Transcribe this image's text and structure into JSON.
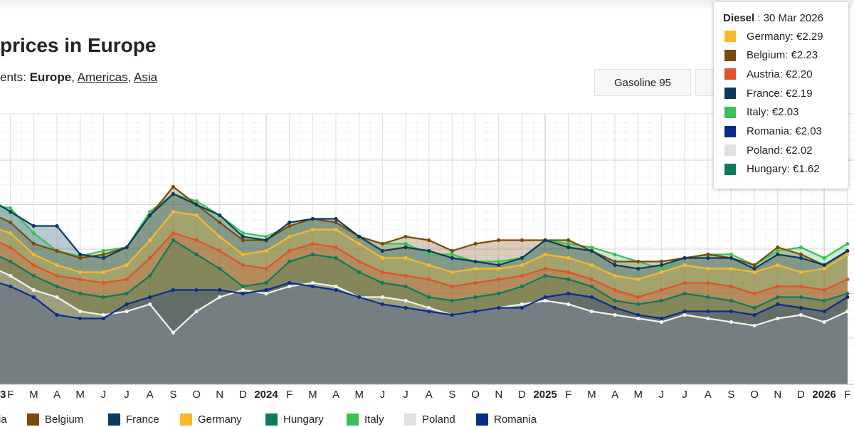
{
  "header": {
    "title": "prices in Europe",
    "subtitle": [
      "ents: ",
      "Europe",
      ", ",
      "Americas",
      ", ",
      "Asia"
    ]
  },
  "buttons": [
    "Gasoline 95"
  ],
  "tooltip": {
    "series_name": "Diesel",
    "date_label": ": 30 Mar 2026",
    "rows": [
      {
        "label": "Germany: €2.29",
        "color": "#f9b928"
      },
      {
        "label": "Belgium: €2.23",
        "color": "#7a4a0b"
      },
      {
        "label": "Austria: €2.20",
        "color": "#e0522b"
      },
      {
        "label": "France: €2.19",
        "color": "#0d3a5c"
      },
      {
        "label": "Italy: €2.03",
        "color": "#3ac05a"
      },
      {
        "label": "Romania: €2.03",
        "color": "#0a2d8c"
      },
      {
        "label": "Poland: €2.02",
        "color": "#e0e0e0"
      },
      {
        "label": "Hungary: €1.62",
        "color": "#0b7a5e"
      }
    ]
  },
  "chart_data": {
    "type": "area",
    "categories": [
      "3",
      "F",
      "M",
      "A",
      "M",
      "J",
      "J",
      "A",
      "S",
      "O",
      "N",
      "D",
      "2024",
      "F",
      "M",
      "A",
      "M",
      "J",
      "J",
      "A",
      "S",
      "O",
      "N",
      "D",
      "2025",
      "F",
      "M",
      "A",
      "M",
      "J",
      "J",
      "A",
      "S",
      "O",
      "N",
      "D",
      "2026",
      "F"
    ],
    "ylim": [
      1.24,
      2.76
    ],
    "yticks": [
      1.5,
      1.75,
      2,
      2.25,
      2.5
    ],
    "grid": true,
    "series": [
      {
        "name": "Austria",
        "color": "#e0522b",
        "values": [
          2.07,
          2.01,
          1.91,
          1.85,
          1.83,
          1.81,
          1.83,
          1.95,
          2.09,
          2.05,
          1.99,
          1.91,
          1.89,
          1.99,
          2.03,
          2.01,
          1.93,
          1.87,
          1.85,
          1.83,
          1.79,
          1.81,
          1.83,
          1.85,
          1.89,
          1.87,
          1.83,
          1.77,
          1.73,
          1.77,
          1.81,
          1.81,
          1.79,
          1.75,
          1.79,
          1.79,
          1.77,
          1.83
        ]
      },
      {
        "name": "Belgium",
        "color": "#7a4a0b",
        "values": [
          2.21,
          2.15,
          2.03,
          1.99,
          1.95,
          1.97,
          2.01,
          2.19,
          2.35,
          2.25,
          2.15,
          2.05,
          2.05,
          2.13,
          2.17,
          2.15,
          2.07,
          2.03,
          2.07,
          2.05,
          1.99,
          2.03,
          2.05,
          2.05,
          2.05,
          2.05,
          1.99,
          1.93,
          1.93,
          1.93,
          1.95,
          1.97,
          1.95,
          1.91,
          2.01,
          1.97,
          1.91,
          1.99
        ]
      },
      {
        "name": "France",
        "color": "#0d3a5c",
        "values": [
          2.29,
          2.21,
          2.13,
          2.13,
          1.97,
          1.95,
          2.01,
          2.19,
          2.31,
          2.25,
          2.19,
          2.07,
          2.05,
          2.15,
          2.17,
          2.17,
          2.07,
          1.99,
          2.01,
          1.99,
          1.95,
          1.93,
          1.91,
          1.95,
          2.05,
          2.01,
          1.99,
          1.91,
          1.89,
          1.91,
          1.95,
          1.95,
          1.95,
          1.89,
          1.97,
          1.95,
          1.91,
          1.99
        ]
      },
      {
        "name": "Germany",
        "color": "#f9b928",
        "values": [
          2.13,
          2.09,
          1.97,
          1.91,
          1.87,
          1.87,
          1.91,
          2.05,
          2.21,
          2.19,
          2.07,
          1.97,
          1.99,
          2.07,
          2.11,
          2.11,
          2.03,
          1.95,
          1.95,
          1.91,
          1.87,
          1.89,
          1.89,
          1.91,
          1.97,
          1.95,
          1.91,
          1.85,
          1.83,
          1.87,
          1.91,
          1.89,
          1.89,
          1.87,
          1.91,
          1.87,
          1.89,
          1.97
        ]
      },
      {
        "name": "Hungary",
        "color": "#0b7a5e",
        "values": [
          1.99,
          1.93,
          1.85,
          1.79,
          1.75,
          1.73,
          1.75,
          1.85,
          2.05,
          1.97,
          1.89,
          1.79,
          1.81,
          1.93,
          1.97,
          1.95,
          1.87,
          1.81,
          1.79,
          1.73,
          1.71,
          1.73,
          1.75,
          1.79,
          1.85,
          1.83,
          1.79,
          1.71,
          1.69,
          1.71,
          1.75,
          1.73,
          1.71,
          1.67,
          1.73,
          1.73,
          1.71,
          1.75
        ]
      },
      {
        "name": "Italy",
        "color": "#3ac05a",
        "values": [
          2.25,
          2.23,
          2.09,
          1.99,
          1.96,
          1.99,
          2.01,
          2.21,
          2.31,
          2.27,
          2.19,
          2.09,
          2.07,
          2.13,
          2.17,
          2.15,
          2.07,
          2.03,
          2.03,
          1.97,
          1.97,
          1.93,
          1.93,
          1.95,
          2.05,
          2.03,
          2.01,
          1.97,
          1.93,
          1.89,
          1.95,
          1.97,
          1.97,
          1.91,
          1.99,
          2.01,
          1.95,
          2.03
        ]
      },
      {
        "name": "Poland",
        "color": "#e0e0e0",
        "values": [
          1.91,
          1.85,
          1.77,
          1.73,
          1.65,
          1.63,
          1.65,
          1.69,
          1.53,
          1.65,
          1.73,
          1.77,
          1.75,
          1.79,
          1.81,
          1.79,
          1.73,
          1.73,
          1.71,
          1.67,
          1.63,
          1.65,
          1.67,
          1.69,
          1.71,
          1.69,
          1.65,
          1.63,
          1.61,
          1.59,
          1.63,
          1.61,
          1.59,
          1.57,
          1.61,
          1.63,
          1.59,
          1.65
        ]
      },
      {
        "name": "Romania",
        "color": "#0a2d8c",
        "values": [
          1.83,
          1.79,
          1.73,
          1.63,
          1.61,
          1.61,
          1.69,
          1.73,
          1.77,
          1.77,
          1.77,
          1.75,
          1.77,
          1.81,
          1.79,
          1.77,
          1.73,
          1.69,
          1.67,
          1.65,
          1.63,
          1.65,
          1.67,
          1.67,
          1.73,
          1.75,
          1.73,
          1.67,
          1.63,
          1.61,
          1.65,
          1.65,
          1.65,
          1.63,
          1.69,
          1.67,
          1.65,
          1.73
        ]
      }
    ]
  }
}
